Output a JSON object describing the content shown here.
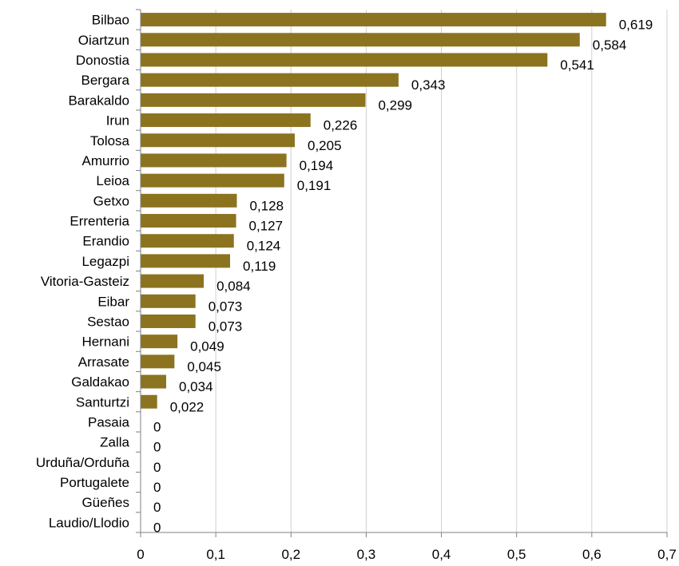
{
  "chart_data": {
    "type": "bar",
    "orientation": "horizontal",
    "categories": [
      "Bilbao",
      "Oiartzun",
      "Donostia",
      "Bergara",
      "Barakaldo",
      "Irun",
      "Tolosa",
      "Amurrio",
      "Leioa",
      "Getxo",
      "Errenteria",
      "Erandio",
      "Legazpi",
      "Vitoria-Gasteiz",
      "Eibar",
      "Sestao",
      "Hernani",
      "Arrasate",
      "Galdakao",
      "Santurtzi",
      "Pasaia",
      "Zalla",
      "Urduña/Orduña",
      "Portugalete",
      "Güeñes",
      "Laudio/Llodio"
    ],
    "values": [
      0.619,
      0.584,
      0.541,
      0.343,
      0.299,
      0.226,
      0.205,
      0.194,
      0.191,
      0.128,
      0.127,
      0.124,
      0.119,
      0.084,
      0.073,
      0.073,
      0.049,
      0.045,
      0.034,
      0.022,
      0,
      0,
      0,
      0,
      0,
      0
    ],
    "value_labels": [
      "0,619",
      "0,584",
      "0,541",
      "0,343",
      "0,299",
      "0,226",
      "0,205",
      "0,194",
      "0,191",
      "0,128",
      "0,127",
      "0,124",
      "0,119",
      "0,084",
      "0,073",
      "0,073",
      "0,049",
      "0,045",
      "0,034",
      "0,022",
      "0",
      "0",
      "0",
      "0",
      "0",
      "0"
    ],
    "xticks": [
      0,
      0.1,
      0.2,
      0.3,
      0.4,
      0.5,
      0.6,
      0.7
    ],
    "xtick_labels": [
      "0",
      "0,1",
      "0,2",
      "0,3",
      "0,4",
      "0,5",
      "0,6",
      "0,7"
    ],
    "xlim": [
      0,
      0.7
    ],
    "grid": true,
    "bar_color": "#8B7320",
    "grid_color": "#D0D0D0",
    "axis_color": "#808080",
    "title": "",
    "xlabel": "",
    "ylabel": ""
  }
}
